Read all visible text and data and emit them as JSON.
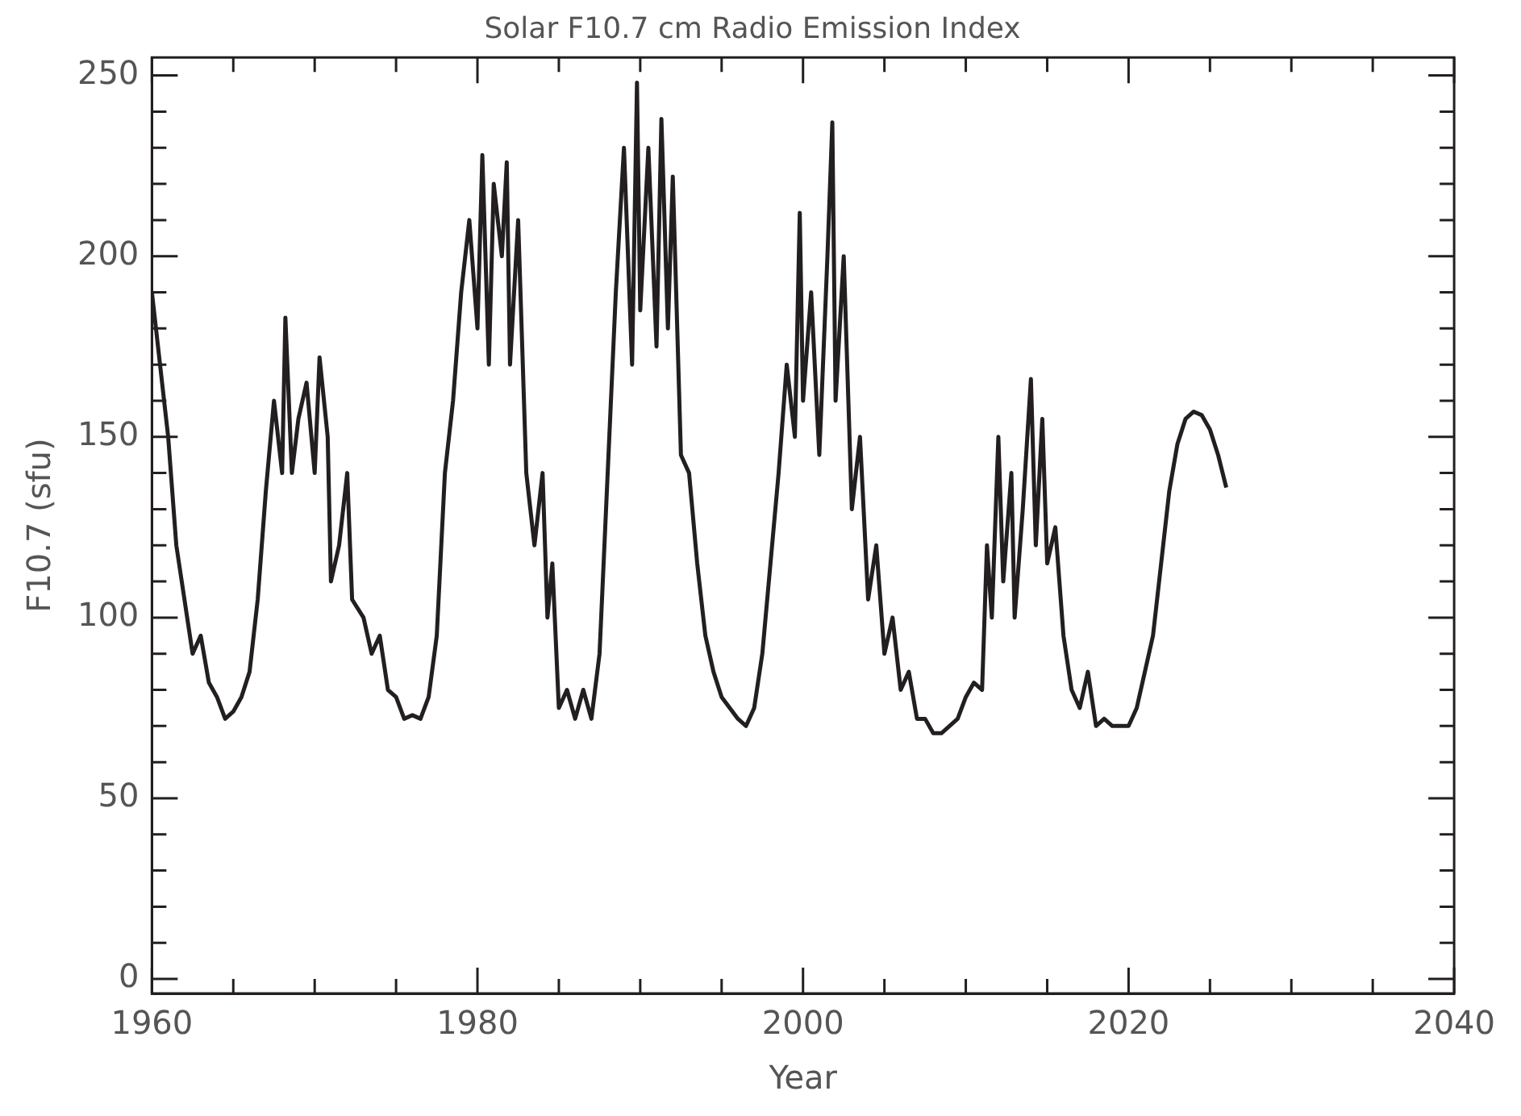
{
  "chart_data": {
    "type": "line",
    "title": "Solar F10.7 cm Radio Emission Index",
    "xlabel": "Year",
    "ylabel": "F10.7 (sfu)",
    "xlim": [
      1960,
      2040
    ],
    "xticks": [
      1960,
      {
        "value": 1965,
        "label": null
      },
      {
        "value": 1970,
        "label": null
      },
      {
        "value": 1975,
        "label": null
      },
      1980,
      {
        "value": 1985,
        "label": null
      },
      {
        "value": 1990,
        "label": null
      },
      {
        "value": 1995,
        "label": null
      },
      2000,
      {
        "value": 2005,
        "label": null
      },
      {
        "value": 2010,
        "label": null
      },
      {
        "value": 2015,
        "label": null
      },
      2020,
      {
        "value": 2025,
        "label": null
      },
      {
        "value": 2030,
        "label": null
      },
      {
        "value": 2035,
        "label": null
      },
      2040
    ],
    "ylim": [
      -4,
      255
    ],
    "yticks": [
      0,
      {
        "value": 10,
        "label": null
      },
      {
        "value": 20,
        "label": null
      },
      {
        "value": 30,
        "label": null
      },
      {
        "value": 40,
        "label": null
      },
      50,
      {
        "value": 60,
        "label": null
      },
      {
        "value": 70,
        "label": null
      },
      {
        "value": 80,
        "label": null
      },
      {
        "value": 90,
        "label": null
      },
      100,
      {
        "value": 110,
        "label": null
      },
      {
        "value": 120,
        "label": null
      },
      {
        "value": 130,
        "label": null
      },
      {
        "value": 140,
        "label": null
      },
      150,
      {
        "value": 160,
        "label": null
      },
      {
        "value": 170,
        "label": null
      },
      {
        "value": 180,
        "label": null
      },
      {
        "value": 190,
        "label": null
      },
      200,
      {
        "value": 210,
        "label": null
      },
      {
        "value": 220,
        "label": null
      },
      {
        "value": 230,
        "label": null
      },
      {
        "value": 240,
        "label": null
      },
      250
    ],
    "grid": false,
    "legend": false,
    "marker": "none",
    "line_style": "solid",
    "x": [
      1960,
      1961,
      1961.5,
      1962,
      1962.5,
      1963,
      1963.5,
      1964,
      1964.5,
      1965,
      1965.5,
      1966,
      1966.5,
      1967,
      1967.5,
      1968,
      1968.2,
      1968.6,
      1969,
      1969.5,
      1970,
      1970.3,
      1970.8,
      1971,
      1971.5,
      1972,
      1972.3,
      1973,
      1973.5,
      1974,
      1974.5,
      1975,
      1975.5,
      1976,
      1976.5,
      1977,
      1977.5,
      1978,
      1978.5,
      1979,
      1979.5,
      1980,
      1980.3,
      1980.7,
      1981,
      1981.5,
      1981.8,
      1982,
      1982.5,
      1983,
      1983.5,
      1984,
      1984.3,
      1984.6,
      1985,
      1985.5,
      1986,
      1986.5,
      1987,
      1987.5,
      1988,
      1988.5,
      1989,
      1989.5,
      1989.8,
      1990,
      1990.5,
      1991,
      1991.3,
      1991.7,
      1992,
      1992.5,
      1993,
      1993.5,
      1994,
      1994.5,
      1995,
      1995.5,
      1996,
      1996.5,
      1997,
      1997.5,
      1998,
      1998.5,
      1999,
      1999.5,
      1999.8,
      2000,
      2000.5,
      2001,
      2001.5,
      2001.8,
      2002,
      2002.5,
      2003,
      2003.5,
      2004,
      2004.5,
      2005,
      2005.5,
      2006,
      2006.5,
      2007,
      2007.5,
      2008,
      2008.5,
      2009,
      2009.5,
      2010,
      2010.5,
      2011,
      2011.3,
      2011.6,
      2012,
      2012.3,
      2012.8,
      2013,
      2013.5,
      2014,
      2014.3,
      2014.7,
      2015,
      2015.5,
      2016,
      2016.5,
      2017,
      2017.5,
      2018,
      2018.5,
      2019,
      2019.5,
      2020,
      2020.5,
      2021,
      2021.5,
      2022,
      2022.5,
      2023,
      2023.5,
      2024,
      2024.5,
      2025,
      2025.5,
      2026
    ],
    "series": [
      {
        "color": "#231f20",
        "values": [
          190,
          150,
          120,
          105,
          90,
          95,
          82,
          78,
          72,
          74,
          78,
          85,
          105,
          135,
          160,
          140,
          183,
          140,
          155,
          165,
          140,
          172,
          150,
          110,
          120,
          140,
          105,
          100,
          90,
          95,
          80,
          78,
          72,
          73,
          72,
          78,
          95,
          140,
          160,
          190,
          210,
          180,
          228,
          170,
          220,
          200,
          226,
          170,
          210,
          140,
          120,
          140,
          100,
          115,
          75,
          80,
          72,
          80,
          72,
          90,
          140,
          190,
          230,
          170,
          248,
          185,
          230,
          175,
          238,
          180,
          222,
          145,
          140,
          115,
          95,
          85,
          78,
          75,
          72,
          70,
          75,
          90,
          115,
          140,
          170,
          150,
          212,
          160,
          190,
          145,
          200,
          237,
          160,
          200,
          130,
          150,
          105,
          120,
          90,
          100,
          80,
          85,
          72,
          72,
          68,
          68,
          70,
          72,
          78,
          82,
          80,
          120,
          100,
          150,
          110,
          140,
          100,
          130,
          166,
          120,
          155,
          115,
          125,
          95,
          80,
          75,
          85,
          70,
          72,
          70,
          70,
          70,
          75,
          85,
          95,
          115,
          135,
          148,
          155,
          157,
          156,
          152,
          145,
          136
        ]
      }
    ]
  }
}
